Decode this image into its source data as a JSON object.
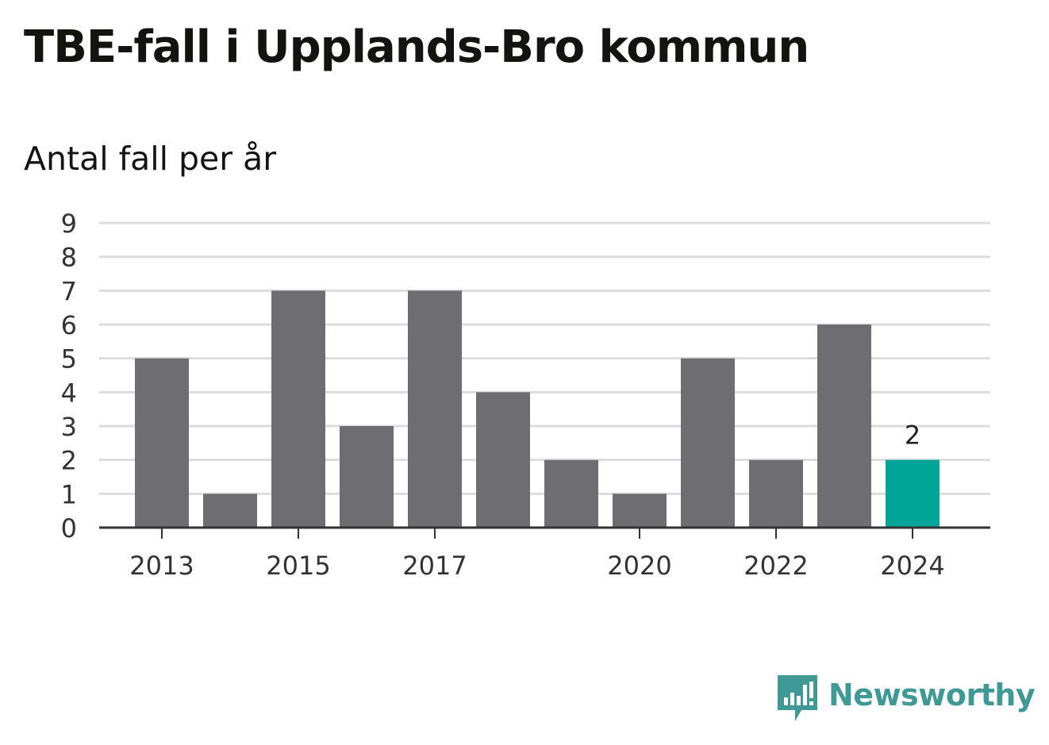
{
  "header": {
    "title": "TBE-fall i Upplands-Bro kommun",
    "subtitle": "Antal fall per år"
  },
  "chart_data": {
    "type": "bar",
    "title": "TBE-fall i Upplands-Bro kommun",
    "subtitle": "Antal fall per år",
    "categories": [
      "2013",
      "2014",
      "2015",
      "2016",
      "2017",
      "2018",
      "2019",
      "2020",
      "2021",
      "2022",
      "2023",
      "2024"
    ],
    "values": [
      5,
      1,
      7,
      3,
      7,
      4,
      2,
      1,
      5,
      2,
      6,
      2
    ],
    "x_tick_labels": [
      "2013",
      "2015",
      "2017",
      "2020",
      "2022",
      "2024"
    ],
    "y_ticks": [
      0,
      1,
      2,
      3,
      4,
      5,
      6,
      7,
      8,
      9
    ],
    "ylim": [
      0,
      9
    ],
    "grid": true,
    "highlight": {
      "category": "2024",
      "label": "2"
    },
    "colors": {
      "bar": "#6e6d72",
      "highlight": "#00a598",
      "grid": "#dcdcdc",
      "axis": "#333333"
    }
  },
  "brand": {
    "name": "Newsworthy",
    "icon": "newsworthy-logo-icon",
    "color": "#3f9a96"
  }
}
